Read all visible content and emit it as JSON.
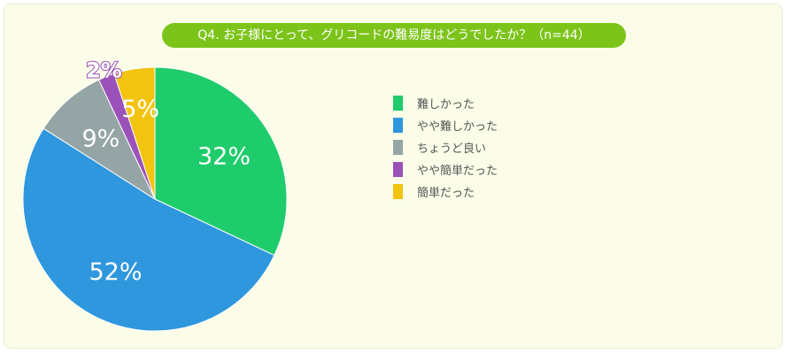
{
  "title": "Q4. お子様にとって、グリコードの難易度はどうでしたか？（n=44）",
  "chart_data": {
    "type": "pie",
    "title": "Q4. お子様にとって、グリコードの難易度はどうでしたか？（n=44）",
    "start_angle_deg": 0,
    "direction": "clockwise",
    "legend_position": "right",
    "slices": [
      {
        "label": "難しかった",
        "value": 32,
        "value_label": "32%",
        "color": "#1fcc6b"
      },
      {
        "label": "やや難しかった",
        "value": 52,
        "value_label": "52%",
        "color": "#2f97dd"
      },
      {
        "label": "ちょうど良い",
        "value": 9,
        "value_label": "9%",
        "color": "#95a5a6"
      },
      {
        "label": "やや簡単だった",
        "value": 2,
        "value_label": "2%",
        "color": "#9b52b8"
      },
      {
        "label": "簡単だった",
        "value": 5,
        "value_label": "5%",
        "color": "#f2c40f"
      }
    ]
  }
}
